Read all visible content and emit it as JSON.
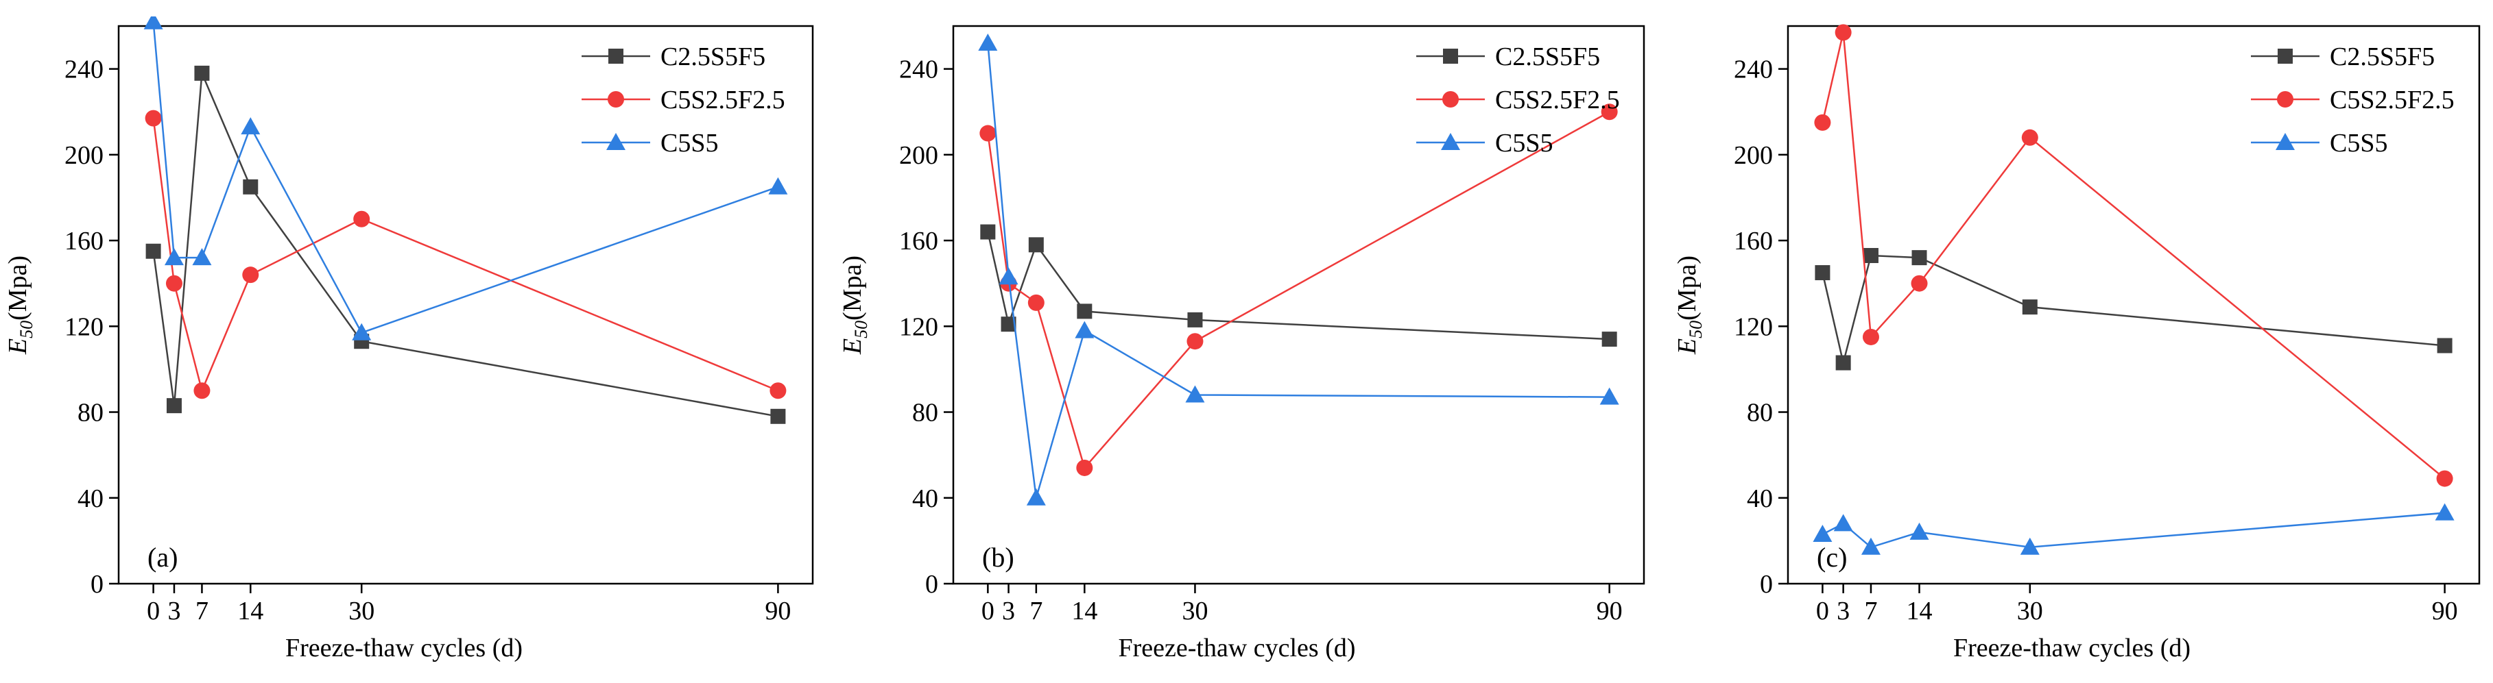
{
  "figure": {
    "panels": [
      {
        "label": "(a)",
        "ylabel_main": "E",
        "ylabel_sub": "50",
        "ylabel_unit": "(Mpa)",
        "xlabel": "Freeze-thaw cycles (d)"
      },
      {
        "label": "(b)",
        "ylabel_main": "E",
        "ylabel_sub": "50",
        "ylabel_unit": "(Mpa)",
        "xlabel": "Freeze-thaw cycles (d)"
      },
      {
        "label": "(c)",
        "ylabel_main": "E",
        "ylabel_sub": "50",
        "ylabel_unit": "(Mpa)",
        "xlabel": "Freeze-thaw cycles (d)"
      }
    ]
  },
  "chart_data": [
    {
      "type": "line",
      "panel": "(a)",
      "xlabel": "Freeze-thaw cycles (d)",
      "ylabel": "E50(Mpa)",
      "xticks": [
        0,
        3,
        7,
        14,
        30,
        90
      ],
      "yticks": [
        0,
        40,
        80,
        120,
        160,
        200,
        240
      ],
      "ylim": [
        0,
        260
      ],
      "xlim": [
        -5,
        95
      ],
      "legend_position": "top-right",
      "series": [
        {
          "name": "C2.5S5F5",
          "color": "#404040",
          "marker": "square",
          "x": [
            0,
            3,
            7,
            14,
            30,
            90
          ],
          "values": [
            155,
            83,
            238,
            185,
            113,
            78
          ]
        },
        {
          "name": "C5S2.5F2.5",
          "color": "#ef3a3a",
          "marker": "circle",
          "x": [
            0,
            3,
            7,
            14,
            30,
            90
          ],
          "values": [
            217,
            140,
            90,
            144,
            170,
            90
          ]
        },
        {
          "name": "C5S5",
          "color": "#2f7fe0",
          "marker": "triangle",
          "x": [
            0,
            3,
            7,
            14,
            30,
            90
          ],
          "values": [
            262,
            152,
            152,
            213,
            117,
            185
          ]
        }
      ]
    },
    {
      "type": "line",
      "panel": "(b)",
      "xlabel": "Freeze-thaw cycles (d)",
      "ylabel": "E50(Mpa)",
      "xticks": [
        0,
        3,
        7,
        14,
        30,
        90
      ],
      "yticks": [
        0,
        40,
        80,
        120,
        160,
        200,
        240
      ],
      "ylim": [
        0,
        260
      ],
      "xlim": [
        -5,
        95
      ],
      "legend_position": "top-right",
      "series": [
        {
          "name": "C2.5S5F5",
          "color": "#404040",
          "marker": "square",
          "x": [
            0,
            3,
            7,
            14,
            30,
            90
          ],
          "values": [
            164,
            121,
            158,
            127,
            123,
            114
          ]
        },
        {
          "name": "C5S2.5F2.5",
          "color": "#ef3a3a",
          "marker": "circle",
          "x": [
            0,
            3,
            7,
            14,
            30,
            90
          ],
          "values": [
            210,
            140,
            131,
            54,
            113,
            220
          ]
        },
        {
          "name": "C5S5",
          "color": "#2f7fe0",
          "marker": "triangle",
          "x": [
            0,
            3,
            7,
            14,
            30,
            90
          ],
          "values": [
            252,
            143,
            40,
            118,
            88,
            87
          ]
        }
      ]
    },
    {
      "type": "line",
      "panel": "(c)",
      "xlabel": "Freeze-thaw cycles (d)",
      "ylabel": "E50(Mpa)",
      "xticks": [
        0,
        3,
        7,
        14,
        30,
        90
      ],
      "yticks": [
        0,
        40,
        80,
        120,
        160,
        200,
        240
      ],
      "ylim": [
        0,
        260
      ],
      "xlim": [
        -5,
        95
      ],
      "legend_position": "top-right",
      "series": [
        {
          "name": "C2.5S5F5",
          "color": "#404040",
          "marker": "square",
          "x": [
            0,
            3,
            7,
            14,
            30,
            90
          ],
          "values": [
            145,
            103,
            153,
            152,
            129,
            111
          ]
        },
        {
          "name": "C5S2.5F2.5",
          "color": "#ef3a3a",
          "marker": "circle",
          "x": [
            0,
            3,
            7,
            14,
            30,
            90
          ],
          "values": [
            215,
            257,
            115,
            140,
            208,
            49
          ]
        },
        {
          "name": "C5S5",
          "color": "#2f7fe0",
          "marker": "triangle",
          "x": [
            0,
            3,
            7,
            14,
            30,
            90
          ],
          "values": [
            23,
            28,
            17,
            24,
            17,
            33
          ]
        }
      ]
    }
  ]
}
